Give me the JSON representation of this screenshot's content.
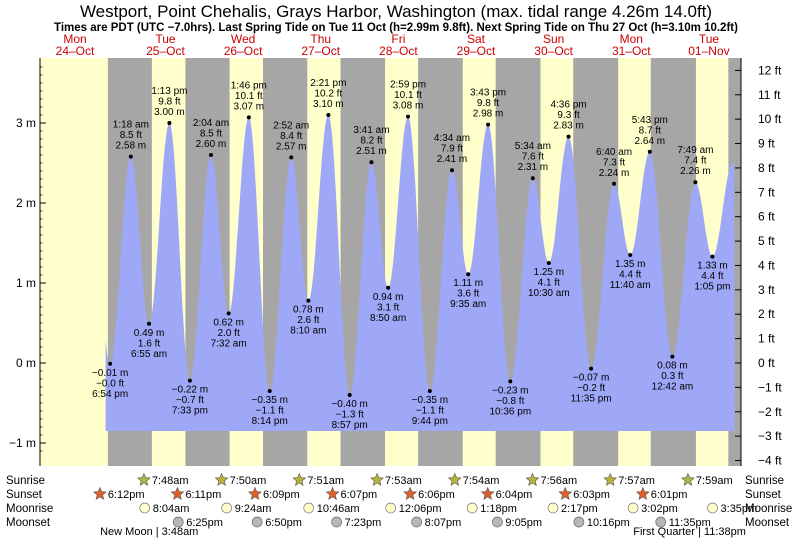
{
  "header": {
    "title": "Westport, Point Chehalis, Grays Harbor, Washington (max. tidal range 4.26m 14.0ft)",
    "subtitle": "Times are PDT (UTC −7.0hrs). Last Spring Tide on Tue 11 Oct (h=2.99m 9.8ft). Next Spring Tide on Thu 27 Oct (h=3.10m 10.2ft)"
  },
  "days": [
    {
      "name": "Mon",
      "date": "24–Oct"
    },
    {
      "name": "Tue",
      "date": "25–Oct"
    },
    {
      "name": "Wed",
      "date": "26–Oct"
    },
    {
      "name": "Thu",
      "date": "27–Oct"
    },
    {
      "name": "Fri",
      "date": "28–Oct"
    },
    {
      "name": "Sat",
      "date": "29–Oct"
    },
    {
      "name": "Sun",
      "date": "30–Oct"
    },
    {
      "name": "Mon",
      "date": "31–Oct"
    },
    {
      "name": "Tue",
      "date": "01–Nov"
    }
  ],
  "chart_data": {
    "type": "area",
    "x_unit": "hours from Mon 24-Oct 00:00 PDT",
    "ylim_m": [
      -1.2,
      3.8
    ],
    "left_axis": {
      "unit": "m",
      "ticks": [
        -1,
        0,
        1,
        2,
        3
      ],
      "labels": [
        "−1 m",
        "0 m",
        "1 m",
        "2 m",
        "3 m"
      ]
    },
    "right_axis": {
      "unit": "ft",
      "ticks": [
        -4,
        -3,
        -2,
        -1,
        0,
        1,
        2,
        3,
        4,
        5,
        6,
        7,
        8,
        9,
        10,
        11,
        12
      ],
      "labels": [
        "−4 ft",
        "−3 ft",
        "−2 ft",
        "−1 ft",
        "0 ft",
        "1 ft",
        "2 ft",
        "3 ft",
        "4 ft",
        "5 ft",
        "6 ft",
        "7 ft",
        "8 ft",
        "9 ft",
        "10 ft",
        "11 ft",
        "12 ft"
      ]
    },
    "tides": [
      {
        "t": 18.9,
        "h": -0.01,
        "m": "−0.01 m",
        "ft": "−0.0 ft",
        "time": "6:54 pm",
        "type": "low"
      },
      {
        "t": 25.3,
        "h": 2.58,
        "m": "2.58 m",
        "ft": "8.5 ft",
        "time": "1:18 am",
        "type": "high"
      },
      {
        "t": 30.92,
        "h": 0.49,
        "m": "0.49 m",
        "ft": "1.6 ft",
        "time": "6:55 am",
        "type": "low"
      },
      {
        "t": 37.22,
        "h": 3.0,
        "m": "3.00 m",
        "ft": "9.8 ft",
        "time": "1:13 pm",
        "type": "high"
      },
      {
        "t": 43.55,
        "h": -0.22,
        "m": "−0.22 m",
        "ft": "−0.7 ft",
        "time": "7:33 pm",
        "type": "low"
      },
      {
        "t": 50.07,
        "h": 2.6,
        "m": "2.60 m",
        "ft": "8.5 ft",
        "time": "2:04 am",
        "type": "high"
      },
      {
        "t": 55.53,
        "h": 0.62,
        "m": "0.62 m",
        "ft": "2.0 ft",
        "time": "7:32 am",
        "type": "low"
      },
      {
        "t": 61.77,
        "h": 3.07,
        "m": "3.07 m",
        "ft": "10.1 ft",
        "time": "1:46 pm",
        "type": "high"
      },
      {
        "t": 68.23,
        "h": -0.35,
        "m": "−0.35 m",
        "ft": "−1.1 ft",
        "time": "8:14 pm",
        "type": "low"
      },
      {
        "t": 74.87,
        "h": 2.57,
        "m": "2.57 m",
        "ft": "8.4 ft",
        "time": "2:52 am",
        "type": "high"
      },
      {
        "t": 80.17,
        "h": 0.78,
        "m": "0.78 m",
        "ft": "2.6 ft",
        "time": "8:10 am",
        "type": "low"
      },
      {
        "t": 86.35,
        "h": 3.1,
        "m": "3.10 m",
        "ft": "10.2 ft",
        "time": "2:21 pm",
        "type": "high"
      },
      {
        "t": 92.95,
        "h": -0.4,
        "m": "−0.40 m",
        "ft": "−1.3 ft",
        "time": "8:57 pm",
        "type": "low"
      },
      {
        "t": 99.68,
        "h": 2.51,
        "m": "2.51 m",
        "ft": "8.2 ft",
        "time": "3:41 am",
        "type": "high"
      },
      {
        "t": 104.83,
        "h": 0.94,
        "m": "0.94 m",
        "ft": "3.1 ft",
        "time": "8:50 am",
        "type": "low"
      },
      {
        "t": 110.98,
        "h": 3.08,
        "m": "3.08 m",
        "ft": "10.1 ft",
        "time": "2:59 pm",
        "type": "high"
      },
      {
        "t": 117.73,
        "h": -0.35,
        "m": "−0.35 m",
        "ft": "−1.1 ft",
        "time": "9:44 pm",
        "type": "low"
      },
      {
        "t": 124.57,
        "h": 2.41,
        "m": "2.41 m",
        "ft": "7.9 ft",
        "time": "4:34 am",
        "type": "high"
      },
      {
        "t": 129.58,
        "h": 1.11,
        "m": "1.11 m",
        "ft": "3.6 ft",
        "time": "9:35 am",
        "type": "low"
      },
      {
        "t": 135.72,
        "h": 2.98,
        "m": "2.98 m",
        "ft": "9.8 ft",
        "time": "3:43 pm",
        "type": "high"
      },
      {
        "t": 142.6,
        "h": -0.23,
        "m": "−0.23 m",
        "ft": "−0.8 ft",
        "time": "10:36 pm",
        "type": "low"
      },
      {
        "t": 149.57,
        "h": 2.31,
        "m": "2.31 m",
        "ft": "7.6 ft",
        "time": "5:34 am",
        "type": "high"
      },
      {
        "t": 154.5,
        "h": 1.25,
        "m": "1.25 m",
        "ft": "4.1 ft",
        "time": "10:30 am",
        "type": "low"
      },
      {
        "t": 160.6,
        "h": 2.83,
        "m": "2.83 m",
        "ft": "9.3 ft",
        "time": "4:36 pm",
        "type": "high"
      },
      {
        "t": 167.58,
        "h": -0.07,
        "m": "−0.07 m",
        "ft": "−0.2 ft",
        "time": "11:35 pm",
        "type": "low"
      },
      {
        "t": 174.67,
        "h": 2.24,
        "m": "2.24 m",
        "ft": "7.3 ft",
        "time": "6:40 am",
        "type": "high"
      },
      {
        "t": 179.67,
        "h": 1.35,
        "m": "1.35 m",
        "ft": "4.4 ft",
        "time": "11:40 am",
        "type": "low"
      },
      {
        "t": 185.72,
        "h": 2.64,
        "m": "2.64 m",
        "ft": "8.7 ft",
        "time": "5:43 pm",
        "type": "high"
      },
      {
        "t": 192.7,
        "h": 0.08,
        "m": "0.08 m",
        "ft": "0.3 ft",
        "time": "12:42 am",
        "type": "low"
      },
      {
        "t": 199.82,
        "h": 2.26,
        "m": "2.26 m",
        "ft": "7.4 ft",
        "time": "7:49 am",
        "type": "high"
      },
      {
        "t": 205.08,
        "h": 1.33,
        "m": "1.33 m",
        "ft": "4.4 ft",
        "time": "1:05 pm",
        "type": "low"
      }
    ],
    "night_day": [
      {
        "start": 0,
        "end": 18.2,
        "kind": "day"
      }
    ],
    "sun": [
      {
        "rise": 7.8,
        "set": 18.2
      },
      {
        "rise": 31.8,
        "set": 42.18
      },
      {
        "rise": 55.83,
        "set": 66.15
      },
      {
        "rise": 79.85,
        "set": 90.12
      },
      {
        "rise": 103.88,
        "set": 114.1
      },
      {
        "rise": 127.9,
        "set": 138.07
      },
      {
        "rise": 151.93,
        "set": 162.05
      },
      {
        "rise": 175.95,
        "set": 186.02
      },
      {
        "rise": 199.98,
        "set": 210.0
      }
    ]
  },
  "astro": {
    "row_labels": [
      "Sunrise",
      "Sunset",
      "Moonrise",
      "Moonset"
    ],
    "sunrise": [
      {
        "t": 31.8,
        "label": "7:48am"
      },
      {
        "t": 55.83,
        "label": "7:50am"
      },
      {
        "t": 79.85,
        "label": "7:51am"
      },
      {
        "t": 103.88,
        "label": "7:53am"
      },
      {
        "t": 127.9,
        "label": "7:54am"
      },
      {
        "t": 151.93,
        "label": "7:56am"
      },
      {
        "t": 175.95,
        "label": "7:57am"
      },
      {
        "t": 199.98,
        "label": "7:59am"
      }
    ],
    "sunset": [
      {
        "t": 18.2,
        "label": "6:12pm"
      },
      {
        "t": 42.18,
        "label": "6:11pm"
      },
      {
        "t": 66.15,
        "label": "6:09pm"
      },
      {
        "t": 90.12,
        "label": "6:07pm"
      },
      {
        "t": 114.1,
        "label": "6:06pm"
      },
      {
        "t": 138.07,
        "label": "6:04pm"
      },
      {
        "t": 162.05,
        "label": "6:03pm"
      },
      {
        "t": 186.02,
        "label": "6:01pm"
      }
    ],
    "moonrise": [
      {
        "t": 32.07,
        "label": "8:04am"
      },
      {
        "t": 57.4,
        "label": "9:24am"
      },
      {
        "t": 82.77,
        "label": "10:46am"
      },
      {
        "t": 108.1,
        "label": "12:06pm"
      },
      {
        "t": 133.3,
        "label": "1:18pm"
      },
      {
        "t": 158.28,
        "label": "2:17pm"
      },
      {
        "t": 183.03,
        "label": "3:02pm"
      },
      {
        "t": 207.58,
        "label": "3:35pm"
      }
    ],
    "moonset": [
      {
        "t": 42.42,
        "label": "6:25pm"
      },
      {
        "t": 66.83,
        "label": "6:50pm"
      },
      {
        "t": 91.38,
        "label": "7:23pm"
      },
      {
        "t": 116.12,
        "label": "8:07pm"
      },
      {
        "t": 141.08,
        "label": "9:05pm"
      },
      {
        "t": 166.27,
        "label": "10:16pm"
      },
      {
        "t": 191.58,
        "label": "11:35pm"
      }
    ],
    "phases": [
      {
        "t": 15.8,
        "label": "New Moon | 3:48am"
      },
      {
        "t": 180.6,
        "label": "First Quarter | 11:38pm"
      }
    ]
  },
  "colors": {
    "day": "#ffffcc",
    "night": "#a6a6a6",
    "water": "#9fa8f7",
    "day_name": "#cc0000",
    "sun_star": "#b5b53a",
    "sunset_star": "#e0602a",
    "moonrise_fill": "#ffffcc",
    "moonset_fill": "#b8b8b8"
  }
}
